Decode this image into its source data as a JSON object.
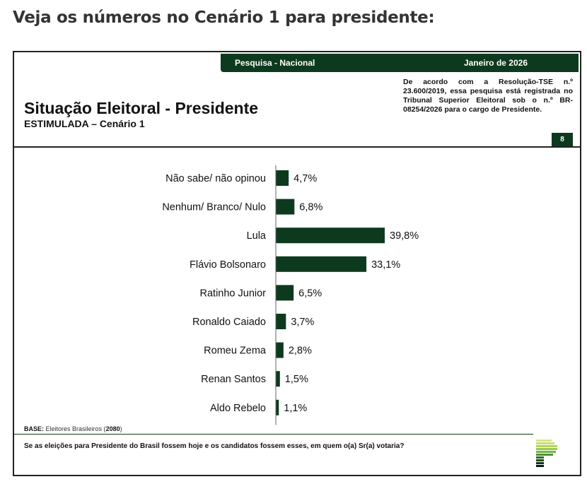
{
  "headline": "Veja os números no Cenário 1 para presidente:",
  "header": {
    "survey": "Pesquisa - Nacional",
    "date": "Janeiro de 2026",
    "page": "8"
  },
  "slide": {
    "title": "Situação Eleitoral - Presidente",
    "subtitle": "ESTIMULADA – Cenário 1",
    "note": "De acordo com a Resolução-TSE n.º 23.600/2019, essa pesquisa está registrada no Tribunal Superior Eleitoral sob o n.º BR-08254/2026 para o cargo de Presidente.",
    "base_label": "BASE:",
    "base_text": "Eleitores Brasileiros (",
    "base_n": "2080",
    "base_close": ")",
    "question": "Se as eleições para Presidente do Brasil fossem hoje e os candidatos fossem esses, em quem o(a) Sr(a) votaria?"
  },
  "colors": {
    "bar": "#0d3a1e",
    "brand": "#0d3a1e"
  },
  "chart_data": {
    "type": "bar",
    "orientation": "horizontal",
    "title": "Situação Eleitoral - Presidente",
    "categories": [
      "Não sabe/ não opinou",
      "Nenhum/ Branco/ Nulo",
      "Lula",
      "Flávio Bolsonaro",
      "Ratinho Junior",
      "Ronaldo Caiado",
      "Romeu Zema",
      "Renan Santos",
      "Aldo Rebelo"
    ],
    "values": [
      4.7,
      6.8,
      39.8,
      33.1,
      6.5,
      3.7,
      2.8,
      1.5,
      1.1
    ],
    "labels": [
      "4,7%",
      "6,8%",
      "39,8%",
      "33,1%",
      "6,5%",
      "3,7%",
      "2,8%",
      "1,5%",
      "1,1%"
    ],
    "unit": "%",
    "xlim": [
      0,
      45
    ]
  }
}
